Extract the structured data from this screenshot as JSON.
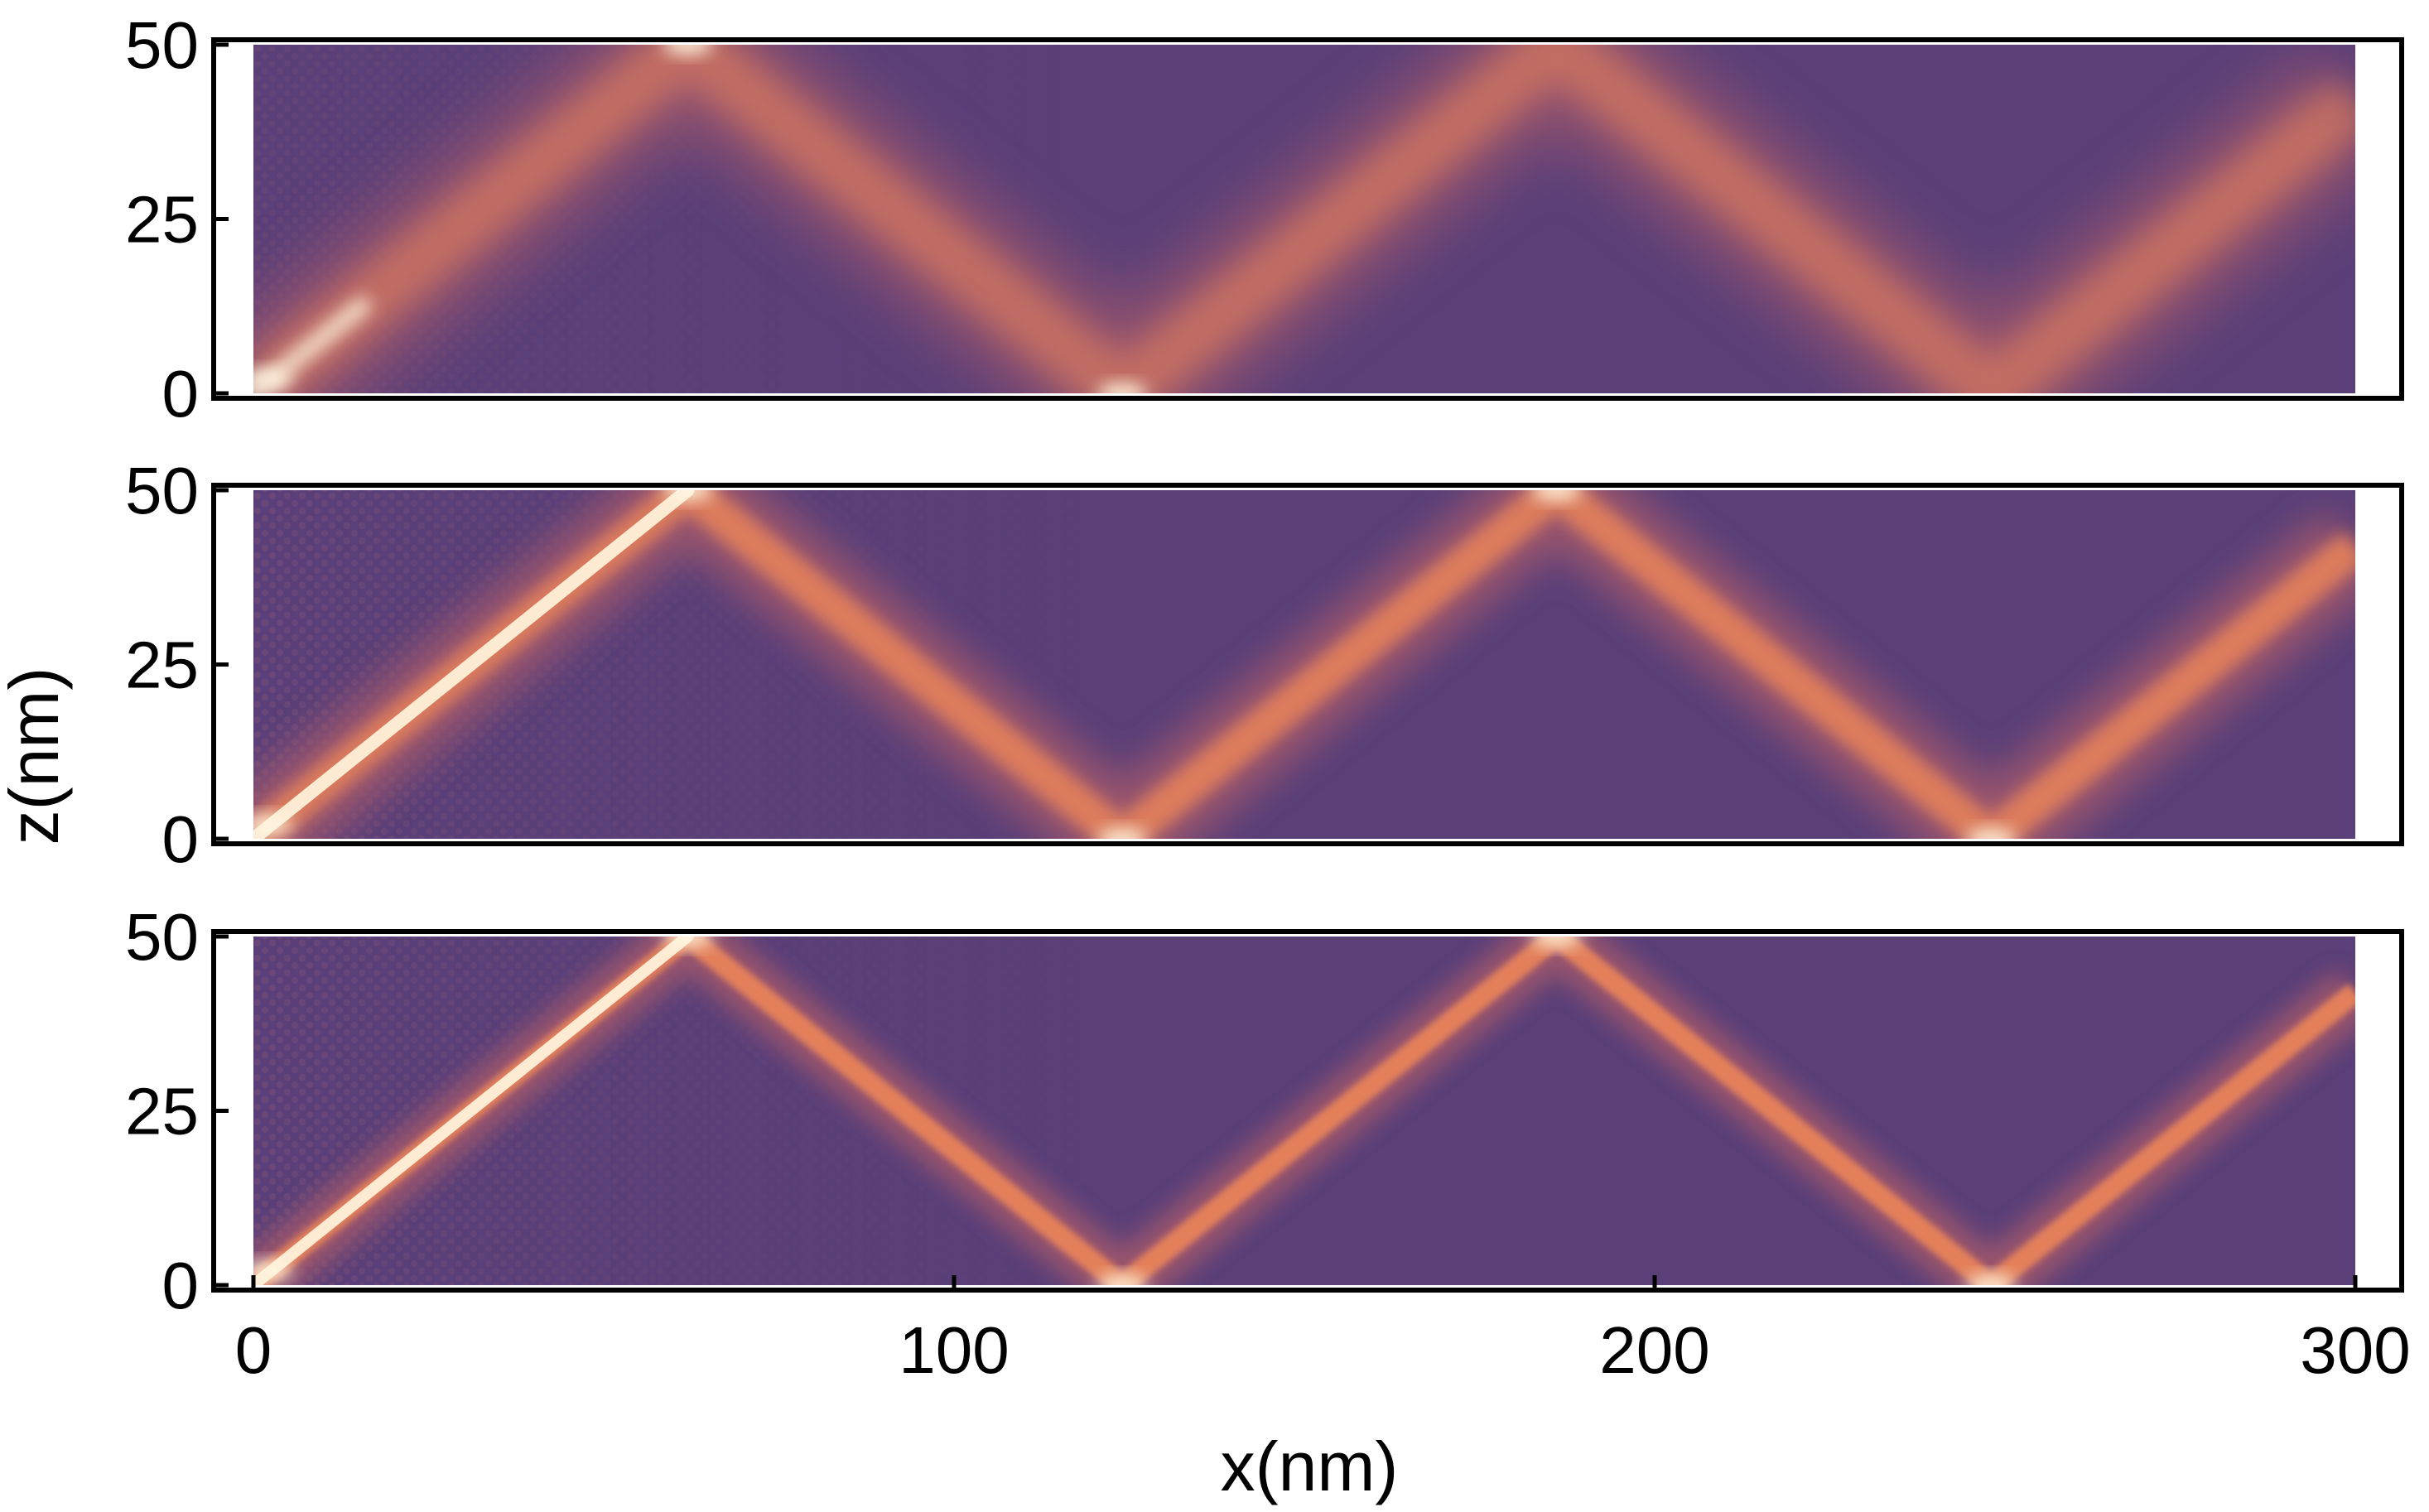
{
  "chart_data": {
    "type": "heatmap",
    "xlabel": "x(nm)",
    "ylabel": "z(nm)",
    "xlim": [
      0,
      300
    ],
    "ylim": [
      0,
      50
    ],
    "x_ticks": [
      "0",
      "100",
      "200",
      "300"
    ],
    "y_ticks": [
      "0",
      "25",
      "50"
    ],
    "colors": {
      "low": "#5a3f78",
      "mid": "#a85a6a",
      "high": "#e8835a",
      "peak": "#fff6e0",
      "frame": "#000000"
    },
    "panels": [
      {
        "id": "top",
        "beam_path": [
          [
            0,
            0
          ],
          [
            62,
            50
          ],
          [
            124,
            0
          ],
          [
            186,
            50
          ],
          [
            248,
            0
          ],
          [
            300,
            42
          ]
        ],
        "beam_sharpness": "diffuse",
        "bright_spots": [
          [
            2,
            2
          ],
          [
            62,
            50
          ],
          [
            124,
            0
          ]
        ]
      },
      {
        "id": "middle",
        "beam_path": [
          [
            0,
            0
          ],
          [
            62,
            50
          ],
          [
            124,
            0
          ],
          [
            186,
            50
          ],
          [
            248,
            0
          ],
          [
            300,
            42
          ]
        ],
        "beam_sharpness": "medium",
        "bright_spots": [
          [
            2,
            2
          ],
          [
            62,
            50
          ],
          [
            124,
            0
          ],
          [
            186,
            50
          ],
          [
            248,
            0
          ]
        ]
      },
      {
        "id": "bottom",
        "beam_path": [
          [
            0,
            0
          ],
          [
            62,
            50
          ],
          [
            124,
            0
          ],
          [
            186,
            50
          ],
          [
            248,
            0
          ],
          [
            300,
            42
          ]
        ],
        "beam_sharpness": "sharp",
        "bright_spots": [
          [
            2,
            2
          ],
          [
            62,
            50
          ],
          [
            124,
            0
          ],
          [
            186,
            50
          ],
          [
            248,
            0
          ]
        ]
      }
    ]
  }
}
